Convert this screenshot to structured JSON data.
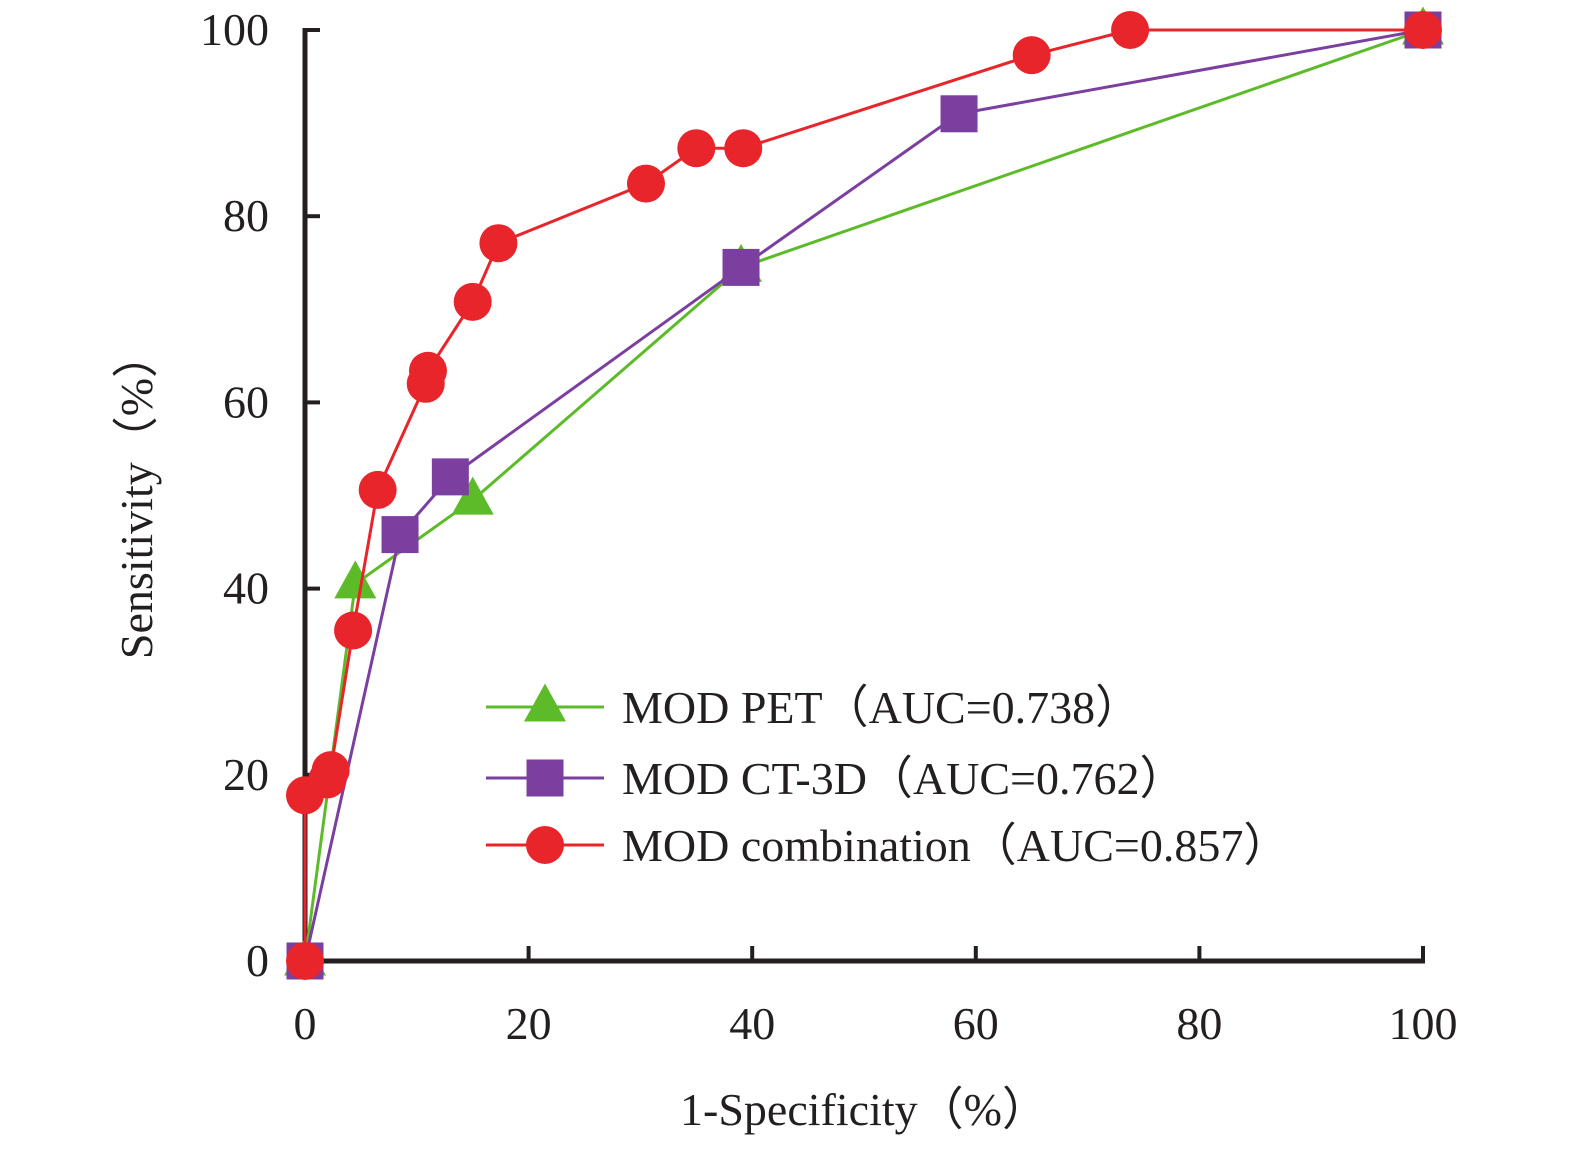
{
  "chart_data": {
    "type": "line",
    "xlabel": "1-Specificity（%）",
    "ylabel": "Sensitivity（%）",
    "xlim": [
      0,
      100
    ],
    "ylim": [
      0,
      100
    ],
    "x_ticks": [
      "0",
      "20",
      "40",
      "60",
      "80",
      "100"
    ],
    "y_ticks": [
      "0",
      "20",
      "40",
      "60",
      "80",
      "100"
    ],
    "grid": false,
    "legend_position": "bottom-center",
    "series": [
      {
        "name": "MOD PET（AUC=0.738）",
        "color": "#5dbb2a",
        "marker": "triangle",
        "points": [
          [
            0,
            0
          ],
          [
            4.5,
            40.5
          ],
          [
            15,
            49.5
          ],
          [
            39,
            74.5
          ],
          [
            100,
            100
          ]
        ]
      },
      {
        "name": "MOD CT-3D（AUC=0.762）",
        "color": "#7b3fa0",
        "marker": "square",
        "points": [
          [
            0,
            0
          ],
          [
            8.5,
            45.8
          ],
          [
            13,
            52
          ],
          [
            39,
            74.5
          ],
          [
            58.5,
            91
          ],
          [
            100,
            100
          ]
        ]
      },
      {
        "name": "MOD combination（AUC=0.857）",
        "color": "#e8252b",
        "marker": "circle",
        "points": [
          [
            0,
            0
          ],
          [
            0,
            17.8
          ],
          [
            2,
            19.5
          ],
          [
            2.3,
            20.5
          ],
          [
            4.3,
            35.5
          ],
          [
            6.5,
            50.6
          ],
          [
            10.8,
            62
          ],
          [
            11,
            63.4
          ],
          [
            15,
            70.8
          ],
          [
            17.3,
            77.1
          ],
          [
            30.5,
            83.5
          ],
          [
            35,
            87.3
          ],
          [
            39.2,
            87.3
          ],
          [
            65,
            97.3
          ],
          [
            73.8,
            100
          ],
          [
            100,
            100
          ]
        ]
      }
    ]
  }
}
